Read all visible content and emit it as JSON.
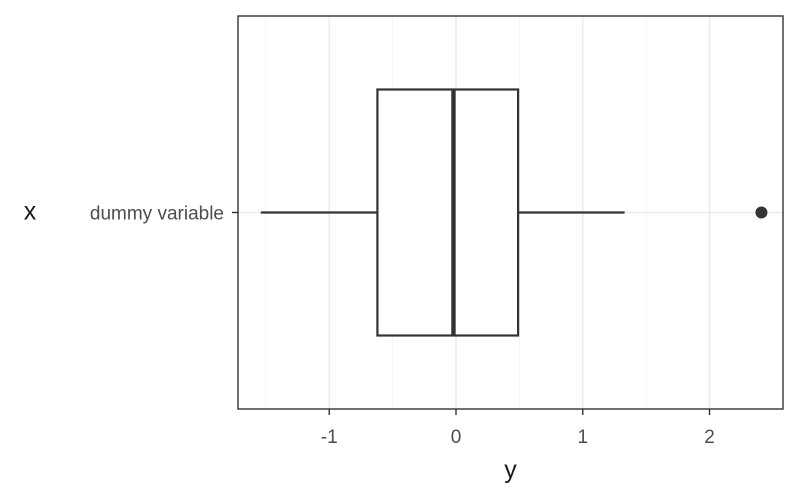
{
  "chart_data": {
    "type": "boxplot",
    "xlabel": "y",
    "ylabel": "x",
    "xlim": [
      -1.72,
      2.58
    ],
    "x_ticks": [
      -1,
      0,
      1,
      2
    ],
    "x_tick_labels": [
      "-1",
      "0",
      "1",
      "2"
    ],
    "categories": [
      "dummy variable"
    ],
    "boxes": [
      {
        "category": "dummy variable",
        "whisker_low": -1.54,
        "q1": -0.62,
        "median": -0.02,
        "q3": 0.49,
        "whisker_high": 1.33,
        "outliers": [
          2.41
        ]
      }
    ],
    "grid": true,
    "theme": "bw",
    "colors": {
      "box_stroke": "#333333",
      "panel_border": "#333333",
      "grid_major": "#ebebeb",
      "grid_minor": "#f5f5f5",
      "outlier": "#333333"
    }
  }
}
